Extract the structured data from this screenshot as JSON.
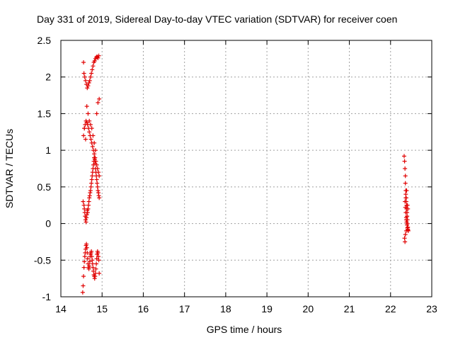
{
  "chart_data": {
    "type": "scatter",
    "title": "Day 331 of 2019, Sidereal Day-to-day VTEC variation (SDTVAR) for receiver coen",
    "xlabel": "GPS time / hours",
    "ylabel": "SDTVAR / TECUs",
    "xlim": [
      14,
      23
    ],
    "ylim": [
      -1,
      2.5
    ],
    "xticks": [
      "14",
      "15",
      "16",
      "17",
      "18",
      "19",
      "20",
      "21",
      "22",
      "23"
    ],
    "yticks": [
      "-1",
      "-0.5",
      "0",
      "0.5",
      "1",
      "1.5",
      "2",
      "2.5"
    ],
    "xtick_values": [
      14,
      15,
      16,
      17,
      18,
      19,
      20,
      21,
      22,
      23
    ],
    "ytick_values": [
      -1,
      -0.5,
      0,
      0.5,
      1,
      1.5,
      2,
      2.5
    ],
    "grid": true,
    "marker": "+",
    "color": "#e00000",
    "series": [
      {
        "name": "SDTVAR",
        "x": [
          14.53,
          14.54,
          14.55,
          14.56,
          14.57,
          14.58,
          14.59,
          14.6,
          14.61,
          14.62,
          14.63,
          14.64,
          14.65,
          14.66,
          14.67,
          14.68,
          14.69,
          14.7,
          14.71,
          14.72,
          14.73,
          14.74,
          14.75,
          14.76,
          14.77,
          14.78,
          14.79,
          14.8,
          14.81,
          14.82,
          14.83,
          14.84,
          14.85,
          14.86,
          14.87,
          14.88,
          14.89,
          14.9,
          14.91,
          14.92,
          14.93,
          14.54,
          14.56,
          14.57,
          14.58,
          14.59,
          14.6,
          14.61,
          14.62,
          14.63,
          14.64,
          14.65,
          14.66,
          14.67,
          14.68,
          14.69,
          14.7,
          14.71,
          14.72,
          14.73,
          14.74,
          14.75,
          14.76,
          14.77,
          14.78,
          14.79,
          14.8,
          14.81,
          14.82,
          14.83,
          14.84,
          14.85,
          14.86,
          14.87,
          14.88,
          14.89,
          14.9,
          14.91,
          14.92,
          14.93,
          14.55,
          14.57,
          14.59,
          14.61,
          14.63,
          14.65,
          14.67,
          14.69,
          14.71,
          14.73,
          14.75,
          14.77,
          14.79,
          14.81,
          14.83,
          14.85,
          14.87,
          14.89,
          14.91,
          14.93,
          14.56,
          14.58,
          14.6,
          14.62,
          14.64,
          14.66,
          14.68,
          14.7,
          14.72,
          14.74,
          14.76,
          14.78,
          14.8,
          14.82,
          14.84,
          14.86,
          14.88,
          14.9,
          14.92,
          14.55,
          14.57,
          14.6,
          14.63,
          14.66,
          14.69,
          14.72,
          14.75,
          14.78,
          14.81,
          14.84,
          14.87,
          14.9,
          14.93,
          22.33,
          22.34,
          22.35,
          22.36,
          22.36,
          22.37,
          22.37,
          22.38,
          22.38,
          22.39,
          22.39,
          22.4,
          22.4,
          22.41,
          22.41,
          22.42,
          22.42,
          22.43,
          22.35,
          22.36,
          22.37,
          22.38,
          22.39,
          22.4,
          22.41,
          22.42,
          22.34,
          22.36,
          22.38,
          22.4,
          22.42,
          22.37,
          22.39,
          22.41,
          22.35,
          22.38
        ],
        "y": [
          -0.94,
          -0.85,
          -0.72,
          -0.6,
          -0.52,
          -0.45,
          -0.4,
          -0.35,
          -0.3,
          -0.28,
          -0.33,
          -0.4,
          -0.48,
          -0.55,
          -0.6,
          -0.62,
          -0.58,
          -0.52,
          -0.45,
          -0.42,
          -0.4,
          -0.38,
          -0.45,
          -0.5,
          -0.55,
          -0.6,
          -0.65,
          -0.7,
          -0.72,
          -0.75,
          -0.72,
          -0.68,
          -0.62,
          -0.55,
          -0.48,
          -0.42,
          -0.38,
          -0.4,
          -0.45,
          -0.5,
          -0.68,
          0.3,
          0.25,
          0.2,
          0.15,
          0.1,
          0.05,
          0.02,
          0.08,
          0.12,
          0.18,
          0.15,
          0.2,
          0.25,
          0.3,
          0.35,
          0.38,
          0.42,
          0.45,
          0.5,
          0.55,
          0.6,
          0.65,
          0.7,
          0.75,
          0.8,
          0.85,
          0.9,
          0.88,
          0.82,
          0.75,
          0.7,
          0.65,
          0.6,
          0.55,
          0.5,
          0.45,
          0.42,
          0.38,
          0.35,
          1.2,
          1.3,
          1.35,
          1.4,
          1.38,
          1.35,
          1.3,
          1.25,
          1.2,
          1.15,
          1.1,
          1.05,
          1.0,
          0.95,
          0.9,
          0.85,
          0.8,
          0.75,
          0.7,
          0.65,
          2.05,
          2.0,
          1.95,
          1.9,
          1.85,
          1.88,
          1.92,
          1.95,
          2.0,
          2.05,
          2.1,
          2.15,
          2.2,
          2.22,
          2.25,
          2.27,
          2.28,
          2.26,
          2.29,
          2.2,
          1.3,
          1.15,
          1.6,
          1.5,
          1.4,
          1.35,
          1.3,
          1.2,
          1.1,
          1.0,
          1.5,
          1.65,
          1.7,
          0.92,
          0.85,
          0.75,
          0.65,
          0.55,
          0.45,
          0.4,
          0.35,
          0.3,
          0.25,
          0.2,
          0.15,
          0.1,
          0.05,
          0.0,
          -0.05,
          -0.08,
          -0.1,
          0.3,
          0.22,
          0.15,
          0.08,
          0.02,
          -0.02,
          -0.06,
          -0.09,
          -0.2,
          -0.15,
          -0.1,
          0.1,
          0.2,
          0.35,
          0.45,
          0.25,
          -0.25,
          0.05
        ]
      }
    ]
  }
}
